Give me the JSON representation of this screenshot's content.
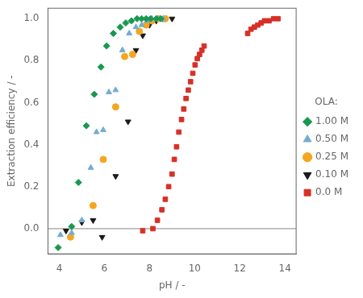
{
  "chart_data": {
    "type": "scatter",
    "xlabel": "pH / -",
    "ylabel": "Extraction efficiency / -",
    "xlim": [
      3.5,
      14.5
    ],
    "ylim": [
      -0.12,
      1.05
    ],
    "xticks": [
      4,
      6,
      8,
      10,
      12,
      14
    ],
    "yticks": [
      {
        "value": 0.0,
        "label": "0.0"
      },
      0.2,
      0.4,
      0.6,
      0.8,
      {
        "value": 1.0,
        "label": "1.0"
      }
    ],
    "grid": false,
    "legend": "right",
    "legend_title": "OLA:",
    "hline": {
      "y": 0.0,
      "color": "#888888"
    },
    "series": [
      {
        "name": "1.00 M",
        "color": "#1a9850",
        "marker": "diamond",
        "x": [
          3.95,
          4.55,
          4.85,
          5.2,
          5.55,
          5.85,
          6.1,
          6.4,
          6.7,
          6.95,
          7.2,
          7.45,
          7.65,
          7.85,
          8.05,
          8.3,
          8.5
        ],
        "values": [
          -0.09,
          0.01,
          0.22,
          0.49,
          0.64,
          0.77,
          0.87,
          0.93,
          0.96,
          0.98,
          0.99,
          1.0,
          1.0,
          1.0,
          1.0,
          1.0,
          1.0
        ]
      },
      {
        "name": "0.50 M",
        "color": "#74add1",
        "marker": "triangle-up",
        "x": [
          4.05,
          4.55,
          5.0,
          5.4,
          5.65,
          5.95,
          6.2,
          6.5,
          6.8,
          7.1,
          7.4,
          7.65,
          7.9,
          8.1,
          8.35,
          8.6
        ],
        "values": [
          -0.03,
          -0.02,
          0.04,
          0.29,
          0.46,
          0.47,
          0.65,
          0.66,
          0.85,
          0.93,
          0.96,
          0.97,
          0.99,
          1.0,
          1.0,
          1.0
        ]
      },
      {
        "name": "0.25 M",
        "color": "#f4a620",
        "marker": "circle",
        "x": [
          4.5,
          5.5,
          5.95,
          6.5,
          6.9,
          7.25,
          7.55,
          7.85,
          8.1,
          8.4,
          8.7
        ],
        "values": [
          -0.04,
          0.11,
          0.33,
          0.58,
          0.82,
          0.83,
          0.94,
          0.97,
          0.99,
          1.0,
          1.0
        ]
      },
      {
        "name": "0.10 M",
        "color": "#1a1a1a",
        "marker": "triangle-down",
        "x": [
          4.3,
          5.0,
          5.5,
          5.9,
          6.5,
          7.05,
          7.4,
          7.7,
          8.0,
          8.3,
          8.6,
          9.0
        ],
        "values": [
          -0.01,
          0.03,
          0.04,
          -0.04,
          0.25,
          0.51,
          0.85,
          0.92,
          0.97,
          0.99,
          1.0,
          1.0
        ]
      },
      {
        "name": "0.0 M",
        "color": "#d73027",
        "marker": "square",
        "x": [
          7.7,
          8.15,
          8.35,
          8.55,
          8.7,
          8.85,
          9.0,
          9.1,
          9.2,
          9.3,
          9.42,
          9.52,
          9.62,
          9.72,
          9.82,
          9.92,
          10.02,
          10.12,
          10.22,
          10.32,
          10.42,
          12.35,
          12.5,
          12.65,
          12.8,
          12.95,
          13.1,
          13.3,
          13.5,
          13.7
        ],
        "values": [
          -0.01,
          0.0,
          0.04,
          0.09,
          0.14,
          0.2,
          0.26,
          0.33,
          0.39,
          0.46,
          0.52,
          0.57,
          0.62,
          0.66,
          0.7,
          0.74,
          0.78,
          0.81,
          0.83,
          0.85,
          0.87,
          0.93,
          0.95,
          0.96,
          0.97,
          0.98,
          0.99,
          0.99,
          1.0,
          1.0
        ]
      }
    ]
  }
}
